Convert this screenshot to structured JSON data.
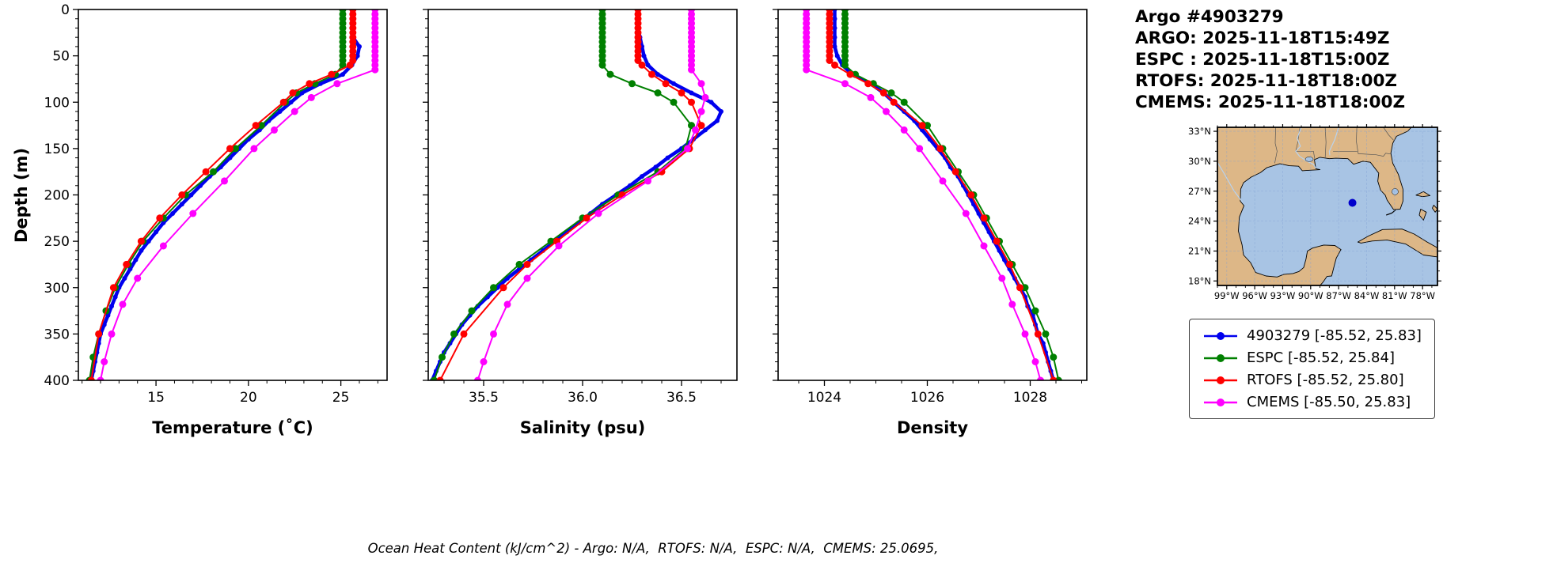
{
  "title_block": {
    "lines": [
      "Argo #4903279",
      "ARGO: 2025-11-18T15:49Z",
      "ESPC : 2025-11-18T15:00Z",
      "RTOFS: 2025-11-18T18:00Z",
      "CMEMS: 2025-11-18T18:00Z"
    ]
  },
  "caption": "Ocean Heat Content (kJ/cm^2) - Argo: N/A,  RTOFS: N/A,  ESPC: N/A,  CMEMS: 25.0695,",
  "legend": {
    "items": [
      {
        "label": "4903279 [-85.52, 25.83]",
        "color": "#0000ee"
      },
      {
        "label": "ESPC [-85.52, 25.84]",
        "color": "#008000"
      },
      {
        "label": "RTOFS [-85.52, 25.80]",
        "color": "#ff0000"
      },
      {
        "label": "CMEMS [-85.50, 25.83]",
        "color": "#ff00ff"
      }
    ]
  },
  "chart_data": {
    "type": "line",
    "description": "Vertical ocean profiles of temperature, salinity and density versus depth for Argo float 4903279 compared to ESPC, RTOFS and CMEMS model fields",
    "depth_axis": {
      "label": "Depth (m)",
      "lim": [
        0,
        400
      ],
      "ticks": [
        0,
        50,
        100,
        150,
        200,
        250,
        300,
        350,
        400
      ],
      "minor": 10,
      "inverted": true
    },
    "panels": [
      {
        "id": "temperature",
        "xlabel": "Temperature (˚C)",
        "xlim": [
          10.8,
          27.5
        ],
        "ticks": [
          15,
          20,
          25
        ],
        "tick_labels": [
          "15",
          "20",
          "25"
        ],
        "minor": 1
      },
      {
        "id": "salinity",
        "xlabel": "Salinity (psu)",
        "xlim": [
          35.22,
          36.78
        ],
        "ticks": [
          35.5,
          36.0,
          36.5
        ],
        "tick_labels": [
          "35.5",
          "36.0",
          "36.5"
        ],
        "minor": 0.1
      },
      {
        "id": "density",
        "xlabel": "Density",
        "xlim": [
          1023.1,
          1029.1
        ],
        "ticks": [
          1024,
          1026,
          1028
        ],
        "tick_labels": [
          "1024",
          "1026",
          "1028"
        ],
        "minor": 0.5
      }
    ],
    "series": [
      {
        "name": "4903279",
        "color": "#0000ee",
        "lw": 4.5,
        "ms": 3,
        "depths": [
          0,
          10,
          20,
          30,
          40,
          50,
          60,
          70,
          80,
          90,
          100,
          110,
          120,
          130,
          140,
          150,
          160,
          170,
          180,
          190,
          200,
          210,
          220,
          230,
          240,
          250,
          260,
          270,
          280,
          290,
          300,
          310,
          320,
          330,
          340,
          350,
          360,
          370,
          380,
          390,
          400
        ],
        "temperature": [
          25.6,
          25.6,
          25.6,
          25.65,
          26.0,
          25.9,
          25.6,
          25.1,
          23.9,
          22.9,
          22.3,
          21.7,
          21.1,
          20.6,
          20.0,
          19.5,
          19.0,
          18.5,
          17.9,
          17.4,
          16.9,
          16.4,
          15.9,
          15.4,
          15.0,
          14.6,
          14.2,
          13.9,
          13.6,
          13.3,
          13.0,
          12.8,
          12.6,
          12.4,
          12.2,
          12.0,
          11.9,
          11.8,
          11.7,
          11.6,
          11.5
        ],
        "salinity": [
          36.28,
          36.28,
          36.28,
          36.29,
          36.3,
          36.31,
          36.33,
          36.38,
          36.46,
          36.55,
          36.65,
          36.7,
          36.68,
          36.62,
          36.56,
          36.5,
          36.43,
          36.37,
          36.3,
          36.24,
          36.17,
          36.1,
          36.04,
          35.98,
          35.92,
          35.86,
          35.8,
          35.74,
          35.68,
          35.62,
          35.57,
          35.52,
          35.47,
          35.43,
          35.39,
          35.36,
          35.33,
          35.3,
          35.28,
          35.26,
          35.24
        ],
        "density": [
          1024.2,
          1024.2,
          1024.2,
          1024.2,
          1024.2,
          1024.25,
          1024.35,
          1024.55,
          1024.9,
          1025.15,
          1025.35,
          1025.55,
          1025.75,
          1025.9,
          1026.05,
          1026.2,
          1026.35,
          1026.45,
          1026.6,
          1026.7,
          1026.8,
          1026.9,
          1027.0,
          1027.1,
          1027.2,
          1027.3,
          1027.4,
          1027.5,
          1027.6,
          1027.7,
          1027.8,
          1027.9,
          1027.95,
          1028.05,
          1028.1,
          1028.15,
          1028.25,
          1028.3,
          1028.35,
          1028.4,
          1028.45
        ]
      },
      {
        "name": "ESPC",
        "color": "#008000",
        "lw": 2,
        "ms": 4.5,
        "depths": [
          0,
          5,
          10,
          15,
          20,
          25,
          30,
          35,
          40,
          45,
          50,
          55,
          60,
          70,
          80,
          90,
          100,
          125,
          150,
          175,
          200,
          225,
          250,
          275,
          300,
          325,
          350,
          375,
          400
        ],
        "temperature": [
          25.1,
          25.1,
          25.1,
          25.1,
          25.1,
          25.1,
          25.1,
          25.1,
          25.1,
          25.1,
          25.1,
          25.1,
          25.1,
          24.7,
          23.6,
          22.6,
          22.0,
          20.7,
          19.3,
          18.1,
          16.6,
          15.4,
          14.3,
          13.5,
          12.8,
          12.3,
          11.9,
          11.6,
          11.4
        ],
        "salinity": [
          36.1,
          36.1,
          36.1,
          36.1,
          36.1,
          36.1,
          36.1,
          36.1,
          36.1,
          36.1,
          36.1,
          36.1,
          36.1,
          36.14,
          36.25,
          36.38,
          36.46,
          36.55,
          36.52,
          36.38,
          36.18,
          36.0,
          35.84,
          35.68,
          35.55,
          35.44,
          35.35,
          35.29,
          35.25
        ],
        "density": [
          1024.4,
          1024.4,
          1024.4,
          1024.4,
          1024.4,
          1024.4,
          1024.4,
          1024.4,
          1024.4,
          1024.4,
          1024.4,
          1024.4,
          1024.4,
          1024.6,
          1024.95,
          1025.3,
          1025.55,
          1026.0,
          1026.3,
          1026.6,
          1026.9,
          1027.15,
          1027.4,
          1027.65,
          1027.9,
          1028.1,
          1028.3,
          1028.45,
          1028.55
        ]
      },
      {
        "name": "RTOFS",
        "color": "#ff0000",
        "lw": 2,
        "ms": 4.5,
        "depths": [
          0,
          5,
          10,
          15,
          20,
          25,
          30,
          35,
          40,
          45,
          50,
          55,
          60,
          70,
          80,
          90,
          100,
          125,
          150,
          175,
          200,
          225,
          250,
          275,
          300,
          350,
          400
        ],
        "temperature": [
          25.65,
          25.65,
          25.65,
          25.65,
          25.65,
          25.65,
          25.65,
          25.65,
          25.65,
          25.65,
          25.65,
          25.65,
          25.5,
          24.5,
          23.3,
          22.4,
          21.9,
          20.4,
          19.0,
          17.7,
          16.4,
          15.2,
          14.2,
          13.4,
          12.7,
          11.9,
          11.5
        ],
        "salinity": [
          36.28,
          36.28,
          36.28,
          36.28,
          36.28,
          36.28,
          36.28,
          36.28,
          36.28,
          36.28,
          36.28,
          36.28,
          36.3,
          36.35,
          36.42,
          36.5,
          36.55,
          36.6,
          36.54,
          36.4,
          36.2,
          36.02,
          35.87,
          35.72,
          35.6,
          35.4,
          35.28
        ],
        "density": [
          1024.1,
          1024.1,
          1024.1,
          1024.1,
          1024.1,
          1024.1,
          1024.1,
          1024.1,
          1024.1,
          1024.1,
          1024.1,
          1024.1,
          1024.2,
          1024.5,
          1024.85,
          1025.15,
          1025.35,
          1025.9,
          1026.25,
          1026.55,
          1026.85,
          1027.1,
          1027.35,
          1027.6,
          1027.8,
          1028.15,
          1028.45
        ]
      },
      {
        "name": "CMEMS",
        "color": "#ff00ff",
        "lw": 2,
        "ms": 4.5,
        "depths": [
          0,
          5,
          10,
          15,
          20,
          25,
          30,
          35,
          40,
          45,
          50,
          55,
          60,
          65,
          80,
          95,
          110,
          130,
          150,
          185,
          220,
          255,
          290,
          318,
          350,
          380,
          400
        ],
        "temperature": [
          26.85,
          26.85,
          26.85,
          26.85,
          26.85,
          26.85,
          26.85,
          26.85,
          26.85,
          26.85,
          26.85,
          26.85,
          26.85,
          26.85,
          24.8,
          23.4,
          22.5,
          21.4,
          20.3,
          18.7,
          17.0,
          15.4,
          14.0,
          13.2,
          12.6,
          12.2,
          12.0
        ],
        "salinity": [
          36.55,
          36.55,
          36.55,
          36.55,
          36.55,
          36.55,
          36.55,
          36.55,
          36.55,
          36.55,
          36.55,
          36.55,
          36.55,
          36.55,
          36.6,
          36.62,
          36.6,
          36.57,
          36.53,
          36.33,
          36.08,
          35.88,
          35.72,
          35.62,
          35.55,
          35.5,
          35.47
        ],
        "density": [
          1023.65,
          1023.65,
          1023.65,
          1023.65,
          1023.65,
          1023.65,
          1023.65,
          1023.65,
          1023.65,
          1023.65,
          1023.65,
          1023.65,
          1023.65,
          1023.65,
          1024.4,
          1024.9,
          1025.2,
          1025.55,
          1025.85,
          1026.3,
          1026.75,
          1027.1,
          1027.45,
          1027.65,
          1027.9,
          1028.1,
          1028.2
        ]
      }
    ]
  },
  "map": {
    "extent": {
      "lon": [
        -100,
        -76.4
      ],
      "lat": [
        17.55,
        33.4
      ]
    },
    "lat_ticks": [
      33,
      30,
      27,
      24,
      21,
      18
    ],
    "lat_labels": [
      "33°N",
      "30°N",
      "27°N",
      "24°N",
      "21°N",
      "18°N"
    ],
    "lon_ticks": [
      -99,
      -96,
      -93,
      -90,
      -87,
      -84,
      -81,
      -78
    ],
    "lon_labels": [
      "99°W",
      "96°W",
      "93°W",
      "90°W",
      "87°W",
      "84°W",
      "81°W",
      "78°W"
    ],
    "marker": {
      "lon": -85.52,
      "lat": 25.83,
      "color": "#0000cc"
    },
    "land_color": "#ddb787",
    "water_color": "#a8c4e4"
  }
}
